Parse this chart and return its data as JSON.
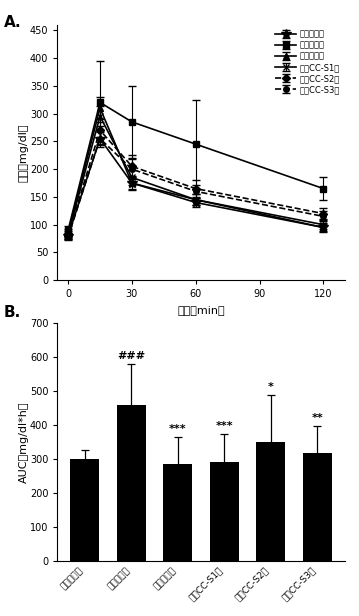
{
  "panel_A_label": "A.",
  "panel_B_label": "B.",
  "time_points": [
    0,
    15,
    30,
    60,
    120
  ],
  "lines": [
    {
      "label": "正常对照组",
      "values": [
        80,
        255,
        175,
        140,
        95
      ],
      "errors": [
        5,
        15,
        10,
        8,
        6
      ],
      "color": "#000000",
      "linestyle": "-",
      "marker": "*",
      "markersize": 7
    },
    {
      "label": "模型对照组",
      "values": [
        90,
        320,
        285,
        245,
        165
      ],
      "errors": [
        8,
        75,
        65,
        80,
        20
      ],
      "color": "#000000",
      "linestyle": "-",
      "marker": "s",
      "markersize": 5
    },
    {
      "label": "罗格列酮组",
      "values": [
        85,
        310,
        175,
        145,
        95
      ],
      "errors": [
        7,
        20,
        12,
        10,
        8
      ],
      "color": "#000000",
      "linestyle": "-",
      "marker": "^",
      "markersize": 5
    },
    {
      "label": "香茅CC-S1组",
      "values": [
        82,
        295,
        185,
        145,
        100
      ],
      "errors": [
        6,
        18,
        14,
        10,
        8
      ],
      "color": "#000000",
      "linestyle": "-",
      "marker": "x",
      "markersize": 5
    },
    {
      "label": "香茅CC-S2组",
      "values": [
        80,
        270,
        205,
        165,
        120
      ],
      "errors": [
        5,
        15,
        20,
        15,
        10
      ],
      "color": "#000000",
      "linestyle": "--",
      "marker": "D",
      "markersize": 4
    },
    {
      "label": "香茅CC-S3组",
      "values": [
        78,
        255,
        200,
        160,
        115
      ],
      "errors": [
        5,
        12,
        18,
        12,
        9
      ],
      "color": "#000000",
      "linestyle": "--",
      "marker": "o",
      "markersize": 4
    }
  ],
  "A_xlabel": "时间（min）",
  "A_ylabel": "血糖（mg/dl）",
  "A_xlim": [
    -5,
    130
  ],
  "A_ylim": [
    0,
    460
  ],
  "A_yticks": [
    0,
    50,
    100,
    150,
    200,
    250,
    300,
    350,
    400,
    450
  ],
  "A_xticks": [
    0,
    30,
    60,
    90,
    120
  ],
  "bar_categories": [
    "正常对照组",
    "模型对照组",
    "罗格列酮组",
    "香茅CC-S1组",
    "香茅CC-S2组",
    "香茅CC-S3组"
  ],
  "bar_values": [
    300,
    460,
    285,
    292,
    350,
    318
  ],
  "bar_errors": [
    25,
    120,
    80,
    82,
    140,
    80
  ],
  "bar_color": "#000000",
  "B_ylabel": "AUC（mg/dl*h）",
  "B_ylim": [
    0,
    700
  ],
  "B_yticks": [
    0,
    100,
    200,
    300,
    400,
    500,
    600,
    700
  ],
  "bar_annotations": [
    "",
    "###",
    "***",
    "***",
    "*",
    "**"
  ],
  "background_color": "#ffffff",
  "font_color": "#000000"
}
